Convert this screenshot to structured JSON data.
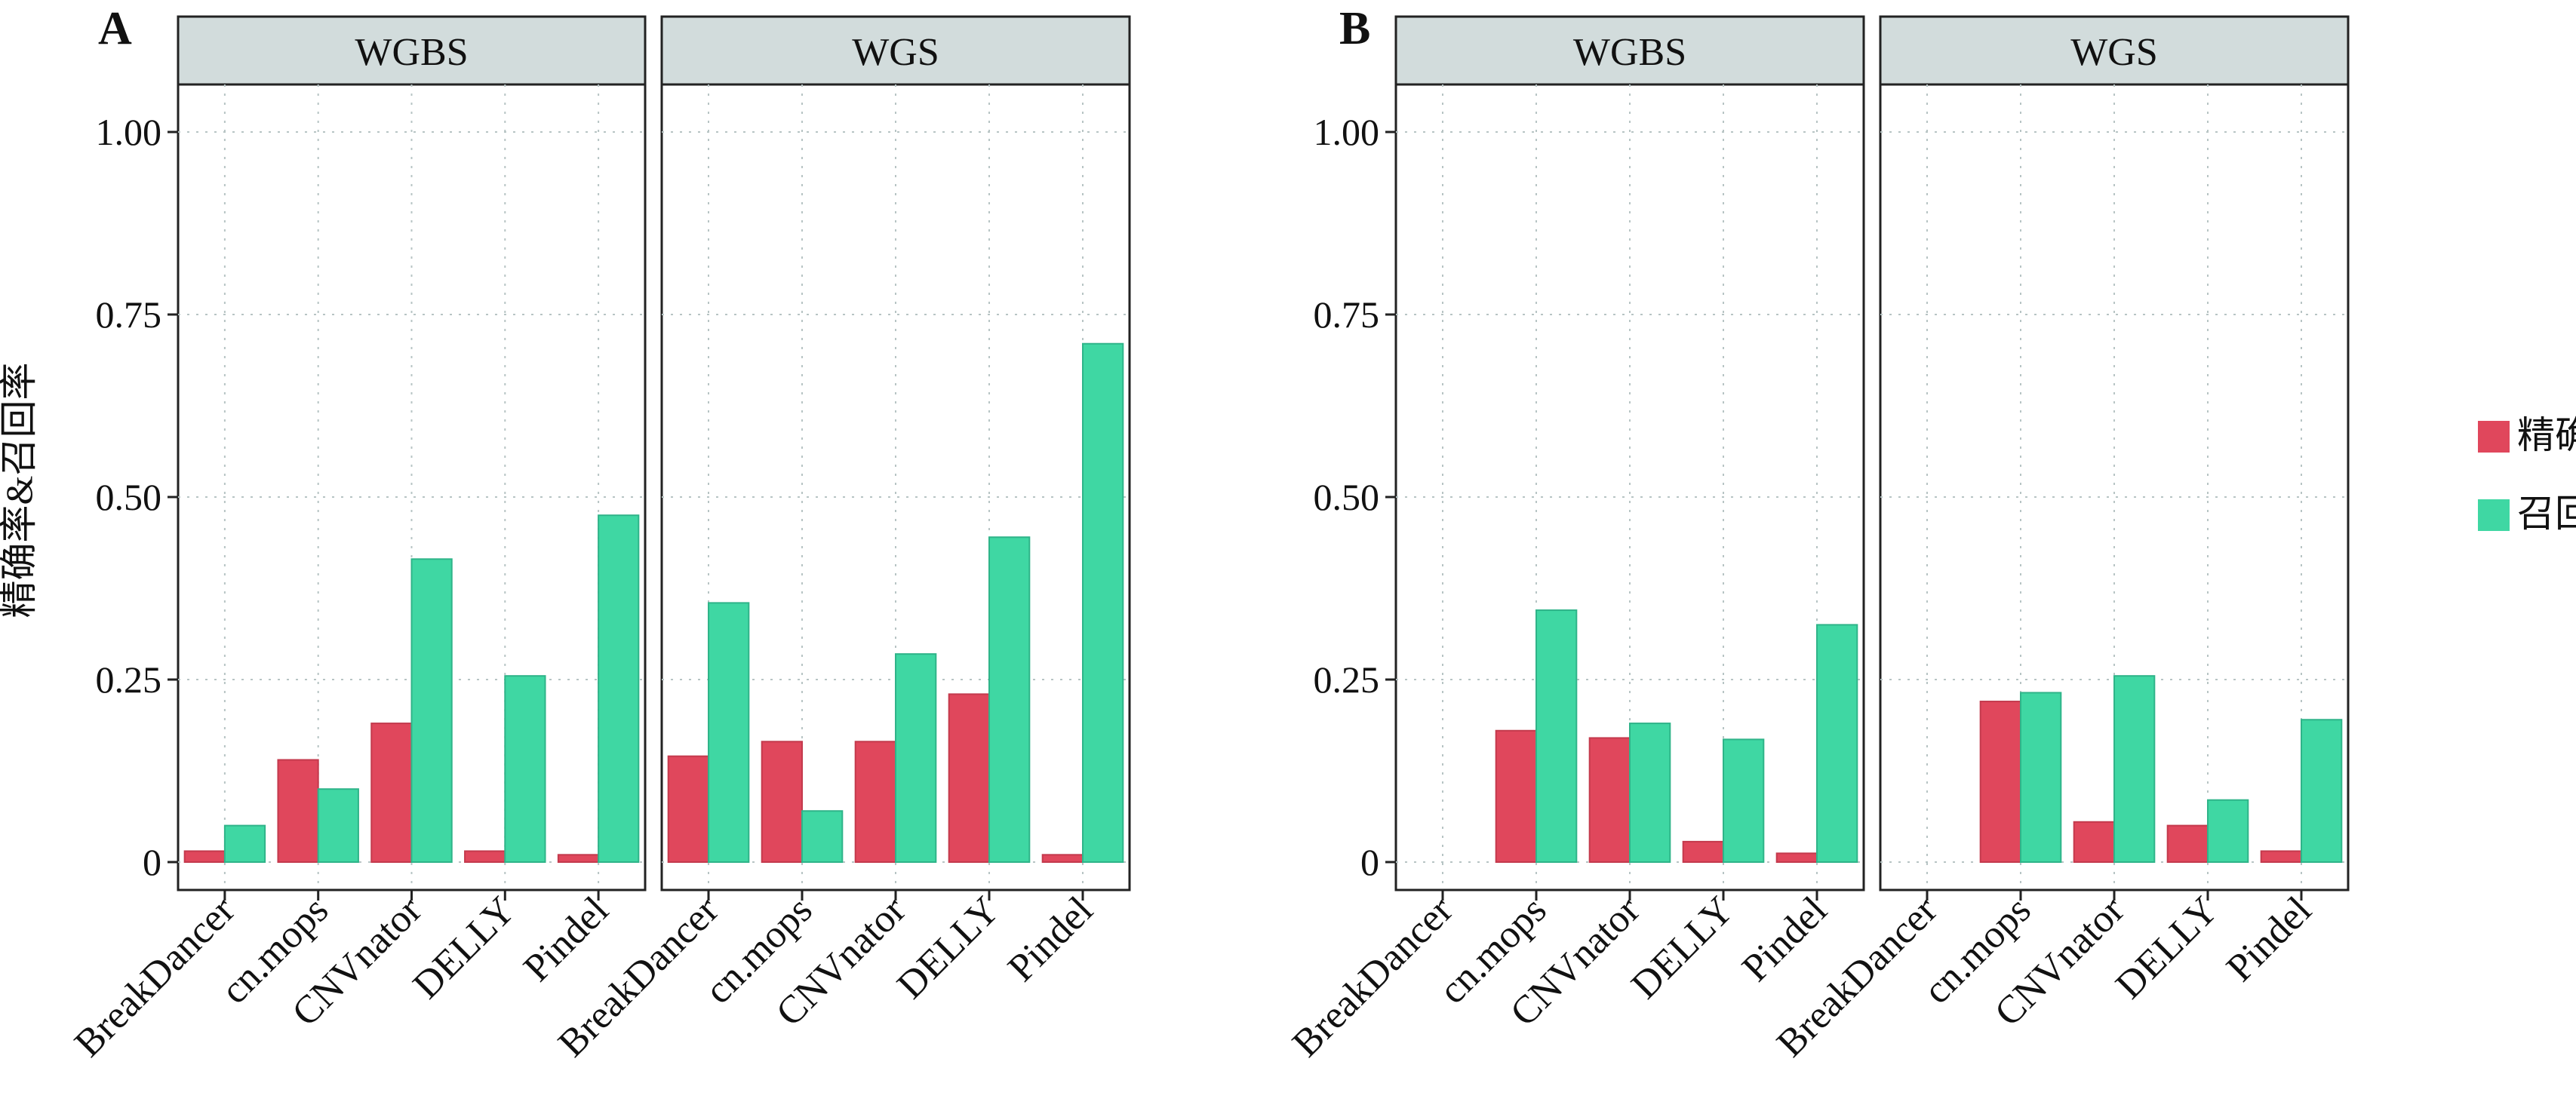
{
  "panels": [
    {
      "letter": "A",
      "facets": [
        {
          "title": "WGBS",
          "chart_data": {
            "type": "bar",
            "categories": [
              "BreakDancer",
              "cn.mops",
              "CNVnator",
              "DELLY",
              "Pindel"
            ],
            "series": [
              {
                "name": "精确率",
                "values": [
                  0.015,
                  0.14,
                  0.19,
                  0.015,
                  0.01
                ]
              },
              {
                "name": "召回率",
                "values": [
                  0.05,
                  0.1,
                  0.415,
                  0.255,
                  0.475
                ]
              }
            ],
            "ylim": [
              0,
              1.05
            ]
          }
        },
        {
          "title": "WGS",
          "chart_data": {
            "type": "bar",
            "categories": [
              "BreakDancer",
              "cn.mops",
              "CNVnator",
              "DELLY",
              "Pindel"
            ],
            "series": [
              {
                "name": "精确率",
                "values": [
                  0.145,
                  0.165,
                  0.165,
                  0.23,
                  0.01
                ]
              },
              {
                "name": "召回率",
                "values": [
                  0.355,
                  0.07,
                  0.285,
                  0.445,
                  0.71
                ]
              }
            ],
            "ylim": [
              0,
              1.05
            ]
          }
        }
      ]
    },
    {
      "letter": "B",
      "facets": [
        {
          "title": "WGBS",
          "chart_data": {
            "type": "bar",
            "categories": [
              "BreakDancer",
              "cn.mops",
              "CNVnator",
              "DELLY",
              "Pindel"
            ],
            "series": [
              {
                "name": "精确率",
                "values": [
                  0,
                  0.18,
                  0.17,
                  0.028,
                  0.012
                ]
              },
              {
                "name": "召回率",
                "values": [
                  0,
                  0.345,
                  0.19,
                  0.168,
                  0.325
                ]
              }
            ],
            "ylim": [
              0,
              1.05
            ]
          }
        },
        {
          "title": "WGS",
          "chart_data": {
            "type": "bar",
            "categories": [
              "BreakDancer",
              "cn.mops",
              "CNVnator",
              "DELLY",
              "Pindel"
            ],
            "series": [
              {
                "name": "精确率",
                "values": [
                  0,
                  0.22,
                  0.055,
                  0.05,
                  0.015
                ]
              },
              {
                "name": "召回率",
                "values": [
                  0,
                  0.232,
                  0.255,
                  0.085,
                  0.195
                ]
              }
            ],
            "ylim": [
              0,
              1.05
            ]
          }
        }
      ]
    }
  ],
  "y_axis": {
    "label": "精确率&召回率",
    "ticks": [
      0,
      0.25,
      0.5,
      0.75,
      1.0
    ],
    "tick_labels": [
      "0",
      "0.25",
      "0.50",
      "0.75",
      "1.00"
    ]
  },
  "legend": {
    "placement": "right",
    "items": [
      {
        "label": "精确率",
        "color": "#e0475c"
      },
      {
        "label": "召回率",
        "color": "#3fd7a3"
      }
    ]
  },
  "style": {
    "strip_fill": "#d2dcdc",
    "grid": true
  }
}
